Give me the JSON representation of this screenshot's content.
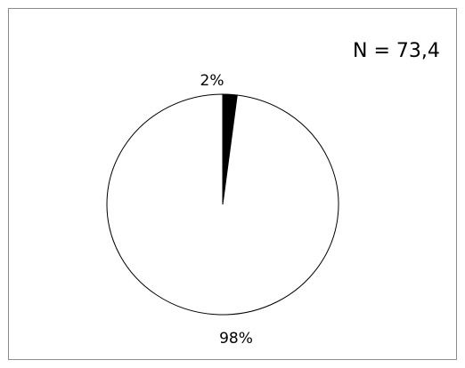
{
  "chart_data": {
    "type": "pie",
    "categories": [
      "",
      ""
    ],
    "values": [
      2,
      98
    ],
    "data_labels": [
      "2%",
      "98%"
    ],
    "colors": [
      "#000000",
      "#ffffff"
    ],
    "annotation": "N = 73,4",
    "title": "",
    "legend": "none"
  }
}
